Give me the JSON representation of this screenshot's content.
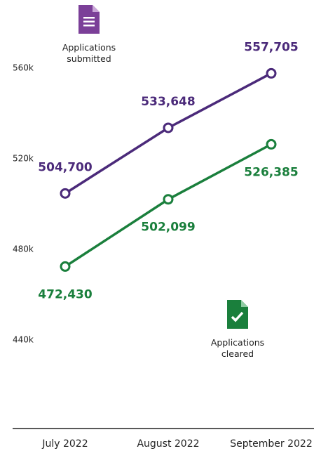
{
  "chart_data": {
    "type": "line",
    "categories": [
      "July 2022",
      "August 2022",
      "September 2022"
    ],
    "series": [
      {
        "name": "Applications submitted",
        "color": "#4b2a7a",
        "values": [
          504700,
          533648,
          557705
        ],
        "value_labels": [
          "504,700",
          "533,648",
          "557,705"
        ]
      },
      {
        "name": "Applications cleared",
        "color": "#1a7f3c",
        "values": [
          472430,
          502099,
          526385
        ],
        "value_labels": [
          "472,430",
          "502,099",
          "526,385"
        ]
      }
    ],
    "ylim": [
      400000,
      580000
    ],
    "yticks": [
      {
        "value": 440000,
        "label": "440k"
      },
      {
        "value": 480000,
        "label": "480k"
      },
      {
        "value": 520000,
        "label": "520k"
      },
      {
        "value": 560000,
        "label": "560k"
      }
    ],
    "grid": false
  }
}
